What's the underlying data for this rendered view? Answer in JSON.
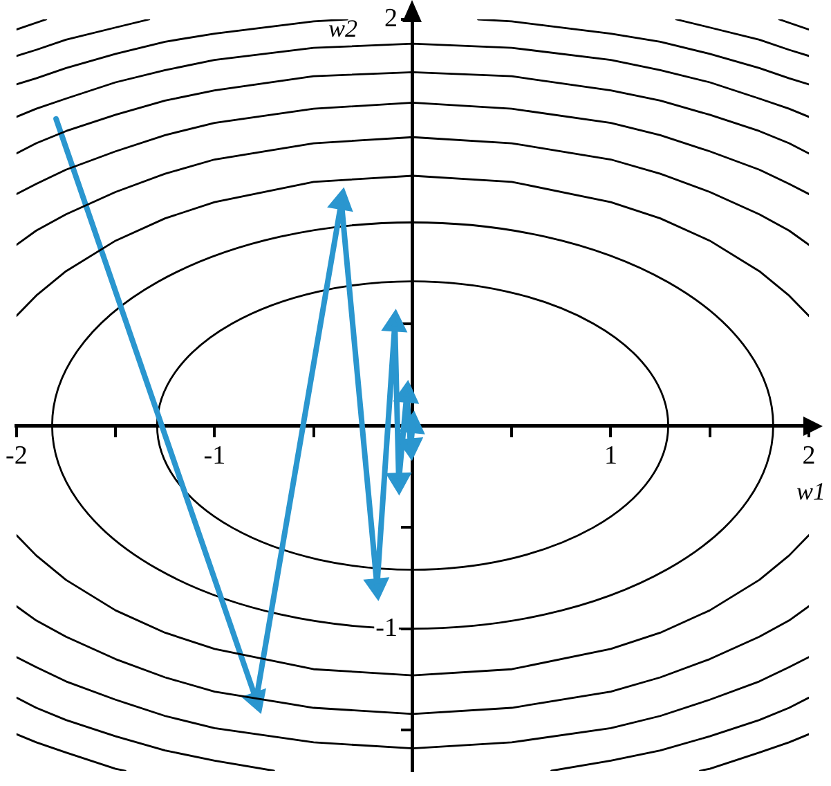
{
  "chart_data": {
    "type": "line",
    "xlabel": "w1",
    "ylabel": "w2",
    "xlim": [
      -2,
      2
    ],
    "ylim": [
      -1.7,
      2
    ],
    "xticks": [
      -2,
      {
        "value": -1.5,
        "label": null
      },
      -1,
      {
        "value": -0.5,
        "label": null
      },
      {
        "value": 0.5,
        "label": null
      },
      1,
      {
        "value": 1.5,
        "label": null
      },
      2
    ],
    "yticks": [
      {
        "value": -1.5,
        "label": null
      },
      -1,
      {
        "value": -0.5,
        "label": null
      },
      {
        "value": 0.5,
        "label": null
      },
      2
    ],
    "series": [
      {
        "color": "#000000",
        "x": [
          -2,
          -1.9,
          -1.75,
          -1.5,
          -1.25,
          -1,
          -0.5,
          0,
          0.5,
          1,
          1.25,
          1.5,
          1.75,
          1.9,
          2
        ],
        "values": [
          0.54,
          0.64,
          0.76,
          0.91,
          1.02,
          1.1,
          1.2,
          1.23,
          1.2,
          1.1,
          1.02,
          0.91,
          0.76,
          0.64,
          0.54
        ]
      },
      {
        "color": "#000000",
        "x": [
          -2,
          -1.9,
          -1.75,
          -1.5,
          -1.25,
          -1,
          -0.5,
          0,
          0.5,
          1,
          1.25,
          1.5,
          1.75,
          1.9,
          2
        ],
        "values": [
          -0.54,
          -0.64,
          -0.76,
          -0.91,
          -1.02,
          -1.1,
          -1.2,
          -1.23,
          -1.2,
          -1.1,
          -1.02,
          -0.91,
          -0.76,
          -0.64,
          -0.54
        ]
      },
      {
        "color": "#000000",
        "x": [
          -2,
          -1.9,
          -1.75,
          -1.5,
          -1.25,
          -1,
          -0.5,
          0,
          0.5,
          1,
          1.25,
          1.5,
          1.75,
          1.9,
          2
        ],
        "values": [
          0.89,
          0.96,
          1.04,
          1.15,
          1.24,
          1.31,
          1.39,
          1.42,
          1.39,
          1.31,
          1.24,
          1.15,
          1.04,
          0.96,
          0.89
        ]
      },
      {
        "color": "#000000",
        "x": [
          -2,
          -1.9,
          -1.75,
          -1.5,
          -1.25,
          -1,
          -0.5,
          0,
          0.5,
          1,
          1.25,
          1.5,
          1.75,
          1.9,
          2
        ],
        "values": [
          -0.89,
          -0.96,
          -1.04,
          -1.15,
          -1.24,
          -1.31,
          -1.39,
          -1.42,
          -1.39,
          -1.31,
          -1.24,
          -1.15,
          -1.04,
          -0.96,
          -0.89
        ]
      },
      {
        "color": "#000000",
        "x": [
          -2,
          -1.9,
          -1.75,
          -1.5,
          -1.25,
          -1,
          -0.5,
          0,
          0.5,
          1,
          1.25,
          1.5,
          1.75,
          1.9,
          2
        ],
        "values": [
          1.14,
          1.19,
          1.26,
          1.35,
          1.43,
          1.49,
          1.56,
          1.59,
          1.56,
          1.49,
          1.43,
          1.35,
          1.26,
          1.19,
          1.14
        ]
      },
      {
        "color": "#000000",
        "x": [
          -2,
          -1.9,
          -1.75,
          -1.5,
          -1.25,
          -1,
          -0.5,
          0,
          0.5,
          1,
          1.25,
          1.5,
          1.75,
          1.9,
          2
        ],
        "values": [
          -1.14,
          -1.19,
          -1.26,
          -1.35,
          -1.43,
          -1.49,
          -1.56,
          -1.59,
          -1.56,
          -1.49,
          -1.43,
          -1.35,
          -1.26,
          -1.19,
          -1.14
        ]
      },
      {
        "color": "#000000",
        "x": [
          -2,
          -1.9,
          -1.75,
          -1.5,
          -1.25,
          -1,
          -0.5,
          0,
          0.5,
          1,
          1.25,
          1.5,
          1.75,
          1.9,
          2
        ],
        "values": [
          1.34,
          1.39,
          1.45,
          1.53,
          1.6,
          1.65,
          1.72,
          1.74,
          1.72,
          1.65,
          1.6,
          1.53,
          1.45,
          1.39,
          1.34
        ]
      },
      {
        "color": "#000000",
        "x": [
          -2,
          -1.9,
          -1.75,
          -1.5,
          -1.25,
          -1,
          -0.7
        ],
        "values": [
          -1.34,
          -1.39,
          -1.45,
          -1.53,
          -1.6,
          -1.65,
          -1.7
        ]
      },
      {
        "color": "#000000",
        "x": [
          0.7,
          1,
          1.25,
          1.5,
          1.75,
          1.9,
          2
        ],
        "values": [
          -1.7,
          -1.65,
          -1.6,
          -1.53,
          -1.45,
          -1.39,
          -1.34
        ]
      },
      {
        "color": "#000000",
        "x": [
          -2,
          -1.9,
          -1.75,
          -1.5,
          -1.25,
          -1,
          -0.5,
          0,
          0.5,
          1,
          1.25,
          1.5,
          1.75,
          1.9,
          2
        ],
        "values": [
          1.52,
          1.56,
          1.61,
          1.69,
          1.75,
          1.8,
          1.86,
          1.88,
          1.86,
          1.8,
          1.75,
          1.69,
          1.61,
          1.56,
          1.52
        ]
      },
      {
        "color": "#000000",
        "x": [
          -2,
          -1.9,
          -1.75,
          -1.5,
          -1.45
        ],
        "values": [
          -1.52,
          -1.56,
          -1.61,
          -1.69,
          -1.7
        ]
      },
      {
        "color": "#000000",
        "x": [
          1.45,
          1.5,
          1.75,
          1.9,
          2
        ],
        "values": [
          -1.7,
          -1.69,
          -1.61,
          -1.56,
          -1.52
        ]
      },
      {
        "color": "#000000",
        "x": [
          -2,
          -1.9,
          -1.75,
          -1.5,
          -1.25,
          -1,
          -0.5,
          -0.33
        ],
        "values": [
          1.68,
          1.71,
          1.76,
          1.83,
          1.89,
          1.93,
          1.99,
          2.0
        ]
      },
      {
        "color": "#000000",
        "x": [
          0.33,
          0.5,
          1,
          1.25,
          1.5,
          1.75,
          1.9,
          2
        ],
        "values": [
          2.0,
          1.99,
          1.93,
          1.89,
          1.83,
          1.76,
          1.71,
          1.68
        ]
      },
      {
        "color": "#000000",
        "x": [
          -2,
          -1.9,
          -1.75,
          -1.5,
          -1.33
        ],
        "values": [
          1.82,
          1.85,
          1.9,
          1.96,
          2.0
        ]
      },
      {
        "color": "#000000",
        "x": [
          1.33,
          1.5,
          1.75,
          1.9,
          2
        ],
        "values": [
          2.0,
          1.96,
          1.9,
          1.85,
          1.82
        ]
      },
      {
        "color": "#000000",
        "x": [
          -2,
          -1.85
        ],
        "values": [
          1.95,
          2.0
        ]
      },
      {
        "color": "#000000",
        "x": [
          1.85,
          2
        ],
        "values": [
          2.0,
          1.95
        ]
      },
      {
        "color": "#2a96cf",
        "marker": "triangle",
        "x": [
          -1.8,
          -0.79,
          -0.36,
          -0.18,
          -0.09,
          -0.07,
          -0.03,
          -0.01,
          0
        ],
        "values": [
          1.51,
          -1.35,
          1.1,
          -0.79,
          0.5,
          -0.27,
          0.15,
          -0.1,
          0
        ]
      }
    ]
  }
}
